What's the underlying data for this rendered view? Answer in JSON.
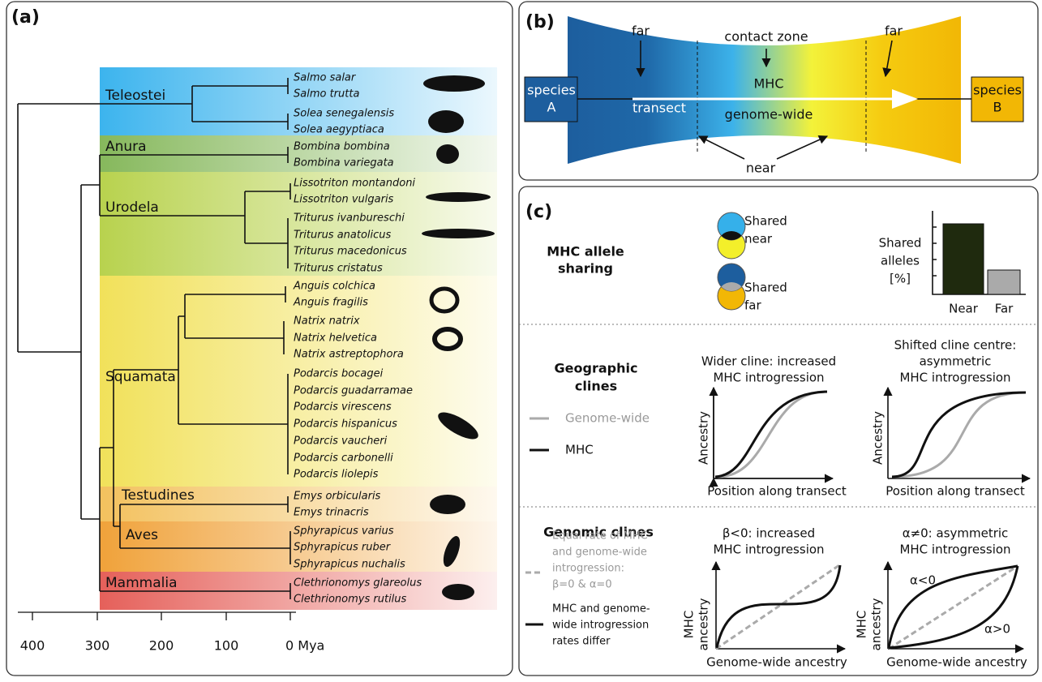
{
  "panel_a": {
    "label": "(a)",
    "clades": [
      {
        "name": "Teleostei",
        "species": [
          "Salmo salar",
          "Salmo trutta",
          "Solea senegalensis",
          "Solea aegyptiaca"
        ]
      },
      {
        "name": "Anura",
        "species": [
          "Bombina bombina",
          "Bombina variegata"
        ]
      },
      {
        "name": "Urodela",
        "species": [
          "Lissotriton montandoni",
          "Lissotriton vulgaris",
          "Triturus ivanbureschi",
          "Triturus anatolicus",
          "Triturus macedonicus",
          "Triturus cristatus"
        ]
      },
      {
        "name": "Squamata",
        "species": [
          "Anguis colchica",
          "Anguis fragilis",
          "Natrix natrix",
          "Natrix helvetica",
          "Natrix astreptophora",
          "Podarcis bocagei",
          "Podarcis guadarramae",
          "Podarcis virescens",
          "Podarcis hispanicus",
          "Podarcis vaucheri",
          "Podarcis carbonelli",
          "Podarcis liolepis"
        ]
      },
      {
        "name": "Testudines",
        "species": [
          "Emys orbicularis",
          "Emys trinacris"
        ]
      },
      {
        "name": "Aves",
        "species": [
          "Sphyrapicus varius",
          "Sphyrapicus ruber",
          "Sphyrapicus nuchalis"
        ]
      },
      {
        "name": "Mammalia",
        "species": [
          "Clethrionomys glareolus",
          "Clethrionomys rutilus"
        ]
      }
    ],
    "axis_labels": [
      "400",
      "300",
      "200",
      "100",
      "0 Mya"
    ]
  },
  "panel_b": {
    "label": "(b)",
    "species_a": [
      "species",
      "A"
    ],
    "species_b": [
      "species",
      "B"
    ],
    "far_left": "far",
    "contact_zone": "contact zone",
    "far_right": "far",
    "mhc": "MHC",
    "transect": "transect",
    "genome_wide": "genome-wide",
    "near": "near"
  },
  "panel_c": {
    "label": "(c)",
    "allele_sharing": {
      "title": [
        "MHC allele",
        "sharing"
      ],
      "shared_near": [
        "Shared",
        "near"
      ],
      "shared_far": [
        "Shared",
        "far"
      ],
      "bar_axis_label": [
        "Shared",
        "alleles",
        "[%]"
      ],
      "bar_categories": [
        "Near",
        "Far"
      ]
    },
    "geographic_clines": {
      "title": [
        "Geographic",
        "clines"
      ],
      "legend": [
        "Genome-wide",
        "MHC"
      ],
      "plots": [
        {
          "title": [
            "Wider cline: increased",
            "MHC introgression"
          ],
          "y_label": "Ancestry",
          "x_label": "Position along transect"
        },
        {
          "title": [
            "Shifted cline centre:",
            "asymmetric",
            "MHC introgression"
          ],
          "y_label": "Ancestry",
          "x_label": "Position along transect"
        }
      ]
    },
    "genomic_clines": {
      "title": "Genomic clines",
      "legend": [
        [
          "Equal rate of MHC",
          "and genome-wide",
          "introgression:",
          "β=0 & α=0"
        ],
        [
          "MHC and genome-",
          "wide introgression",
          "rates differ"
        ]
      ],
      "plots": [
        {
          "title": [
            "β<0: increased",
            "MHC introgression"
          ],
          "y_label": [
            "MHC",
            "ancestry"
          ],
          "x_label": "Genome-wide ancestry"
        },
        {
          "title": [
            "α≠0: asymmetric",
            "MHC introgression"
          ],
          "y_label": [
            "MHC",
            "ancestry"
          ],
          "x_label": "Genome-wide ancestry",
          "annotations": [
            "α<0",
            "α>0"
          ]
        }
      ]
    }
  }
}
